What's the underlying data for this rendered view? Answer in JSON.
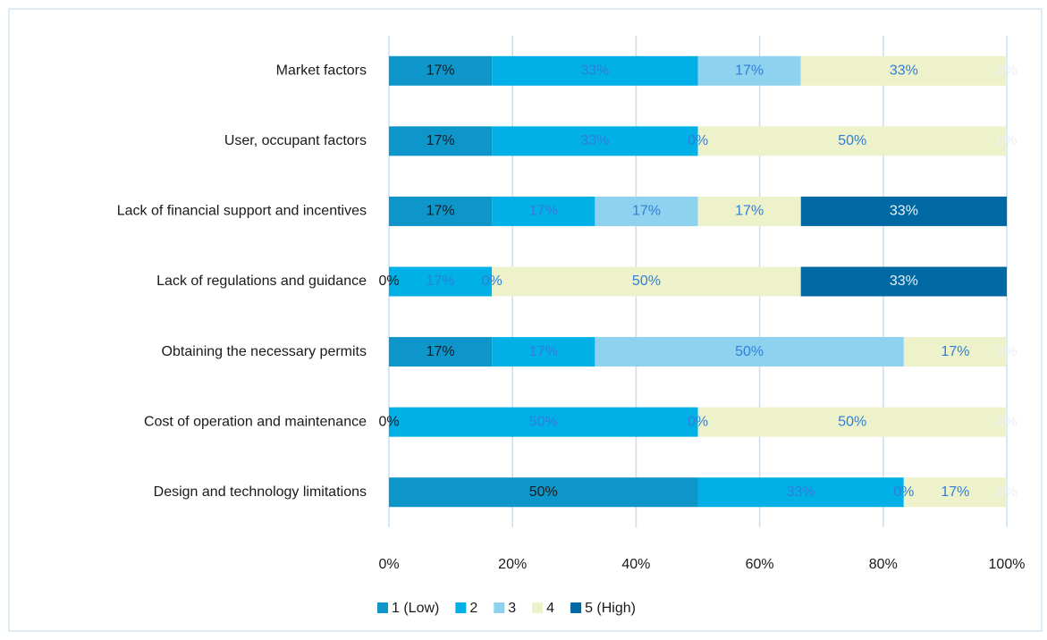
{
  "chart_data": {
    "type": "stacked-bar-horizontal",
    "categories": [
      "Market factors",
      "User, occupant factors",
      "Lack of financial support and incentives",
      "Lack of regulations and guidance",
      "Obtaining the necessary permits",
      "Cost of operation and maintenance",
      "Design and technology limitations"
    ],
    "series": [
      {
        "name": "1 (Low)",
        "color": "#0e95c9",
        "label_color": "#1a1a1a",
        "values": [
          16.67,
          16.67,
          16.67,
          0,
          16.67,
          0,
          50
        ],
        "value_labels": [
          "17%",
          "17%",
          "17%",
          "0%",
          "17%",
          "0%",
          "50%"
        ]
      },
      {
        "name": "2",
        "color": "#00b0e6",
        "label_color": "#2f7fd8",
        "values": [
          33.33,
          33.33,
          16.67,
          16.67,
          16.67,
          50,
          33.33
        ],
        "value_labels": [
          "33%",
          "33%",
          "17%",
          "17%",
          "17%",
          "50%",
          "33%"
        ]
      },
      {
        "name": "3",
        "color": "#8fd2ef",
        "label_color": "#2f7fd8",
        "values": [
          16.67,
          0,
          16.67,
          0,
          50,
          0,
          0
        ],
        "value_labels": [
          "17%",
          "0%",
          "17%",
          "0%",
          "50%",
          "0%",
          "0%"
        ]
      },
      {
        "name": "4",
        "color": "#eef2cb",
        "label_color": "#2f7fd8",
        "values": [
          33.33,
          50,
          16.67,
          50,
          16.67,
          50,
          16.67
        ],
        "value_labels": [
          "33%",
          "50%",
          "17%",
          "50%",
          "17%",
          "50%",
          "17%"
        ]
      },
      {
        "name": "5 (High)",
        "color": "#0069a3",
        "label_color": "#e8f0f8",
        "values": [
          0,
          0,
          33.33,
          33.33,
          0,
          0,
          0
        ],
        "value_labels": [
          "0%",
          "0%",
          "33%",
          "33%",
          "0%",
          "0%",
          "0%"
        ]
      }
    ],
    "xlim": [
      0,
      100
    ],
    "xticks": [
      {
        "value": 0,
        "label": "0%"
      },
      {
        "value": 20,
        "label": "20%"
      },
      {
        "value": 40,
        "label": "40%"
      },
      {
        "value": 60,
        "label": "60%"
      },
      {
        "value": 80,
        "label": "80%"
      },
      {
        "value": 100,
        "label": "100%"
      }
    ],
    "grid": true,
    "legend": "bottom"
  }
}
